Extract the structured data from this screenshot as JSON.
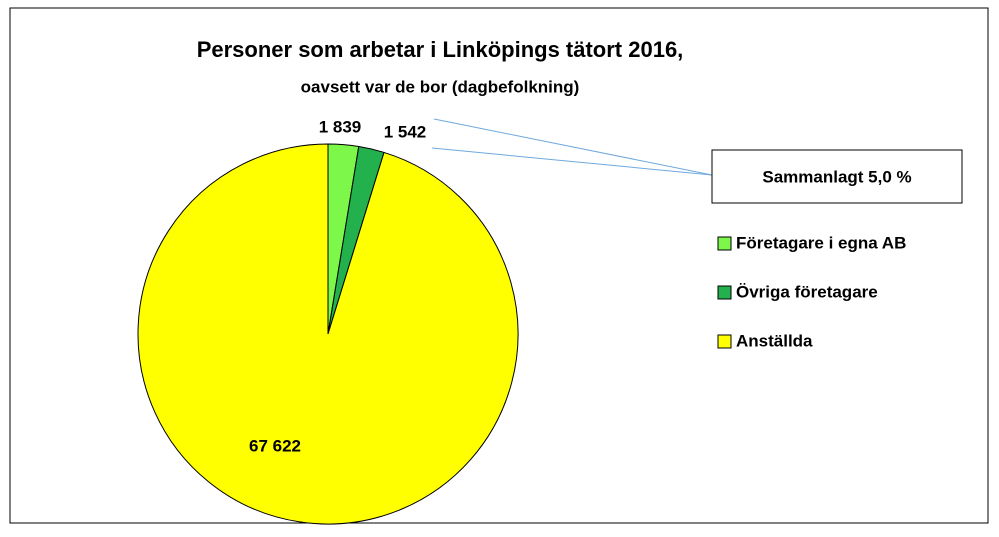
{
  "chart_data": {
    "type": "pie",
    "title": "Personer som arbetar i Linköpings tätort 2016,",
    "subtitle": "oavsett var de bor (dagbefolkning)",
    "categories": [
      "Företagare i egna AB",
      "Övriga företagare",
      "Anställda"
    ],
    "values": [
      1839,
      1542,
      67622
    ],
    "value_labels": [
      "1 839",
      "1 542",
      "67 622"
    ],
    "colors": [
      "#7cf74a",
      "#22b14c",
      "#ffff00"
    ],
    "annotation": "Sammanlagt 5,0 %",
    "legend": "right"
  }
}
